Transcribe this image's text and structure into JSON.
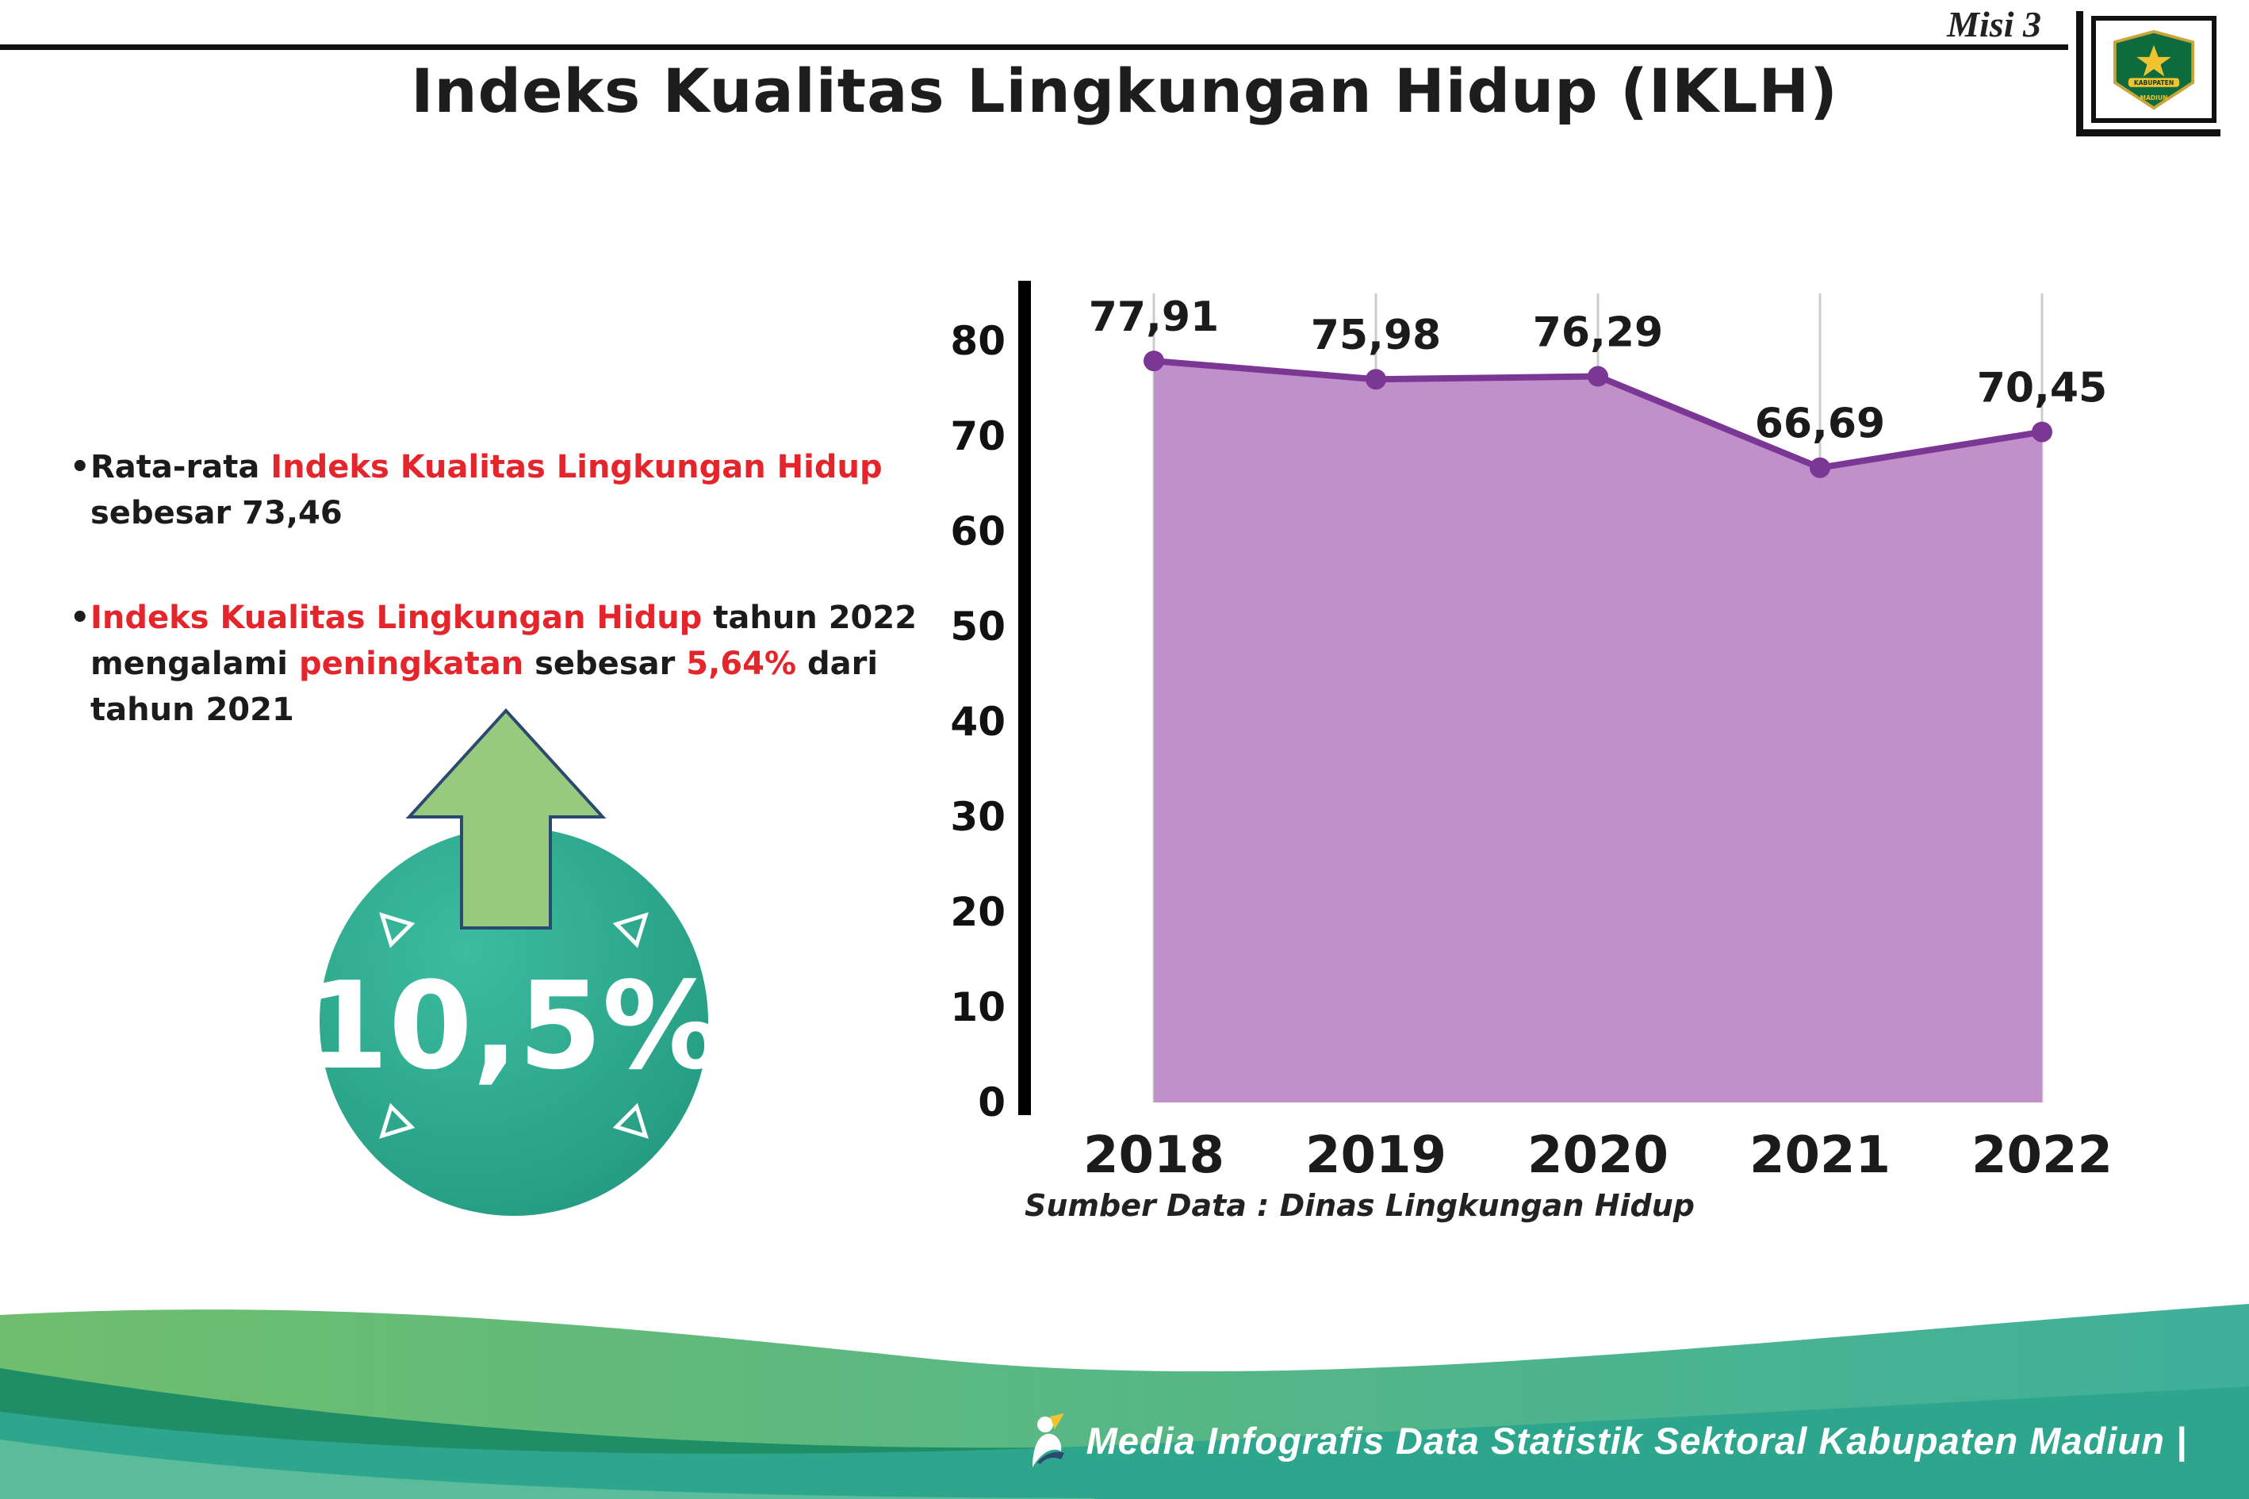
{
  "header": {
    "misi_label": "Misi 3",
    "title": "Indeks Kualitas Lingkungan Hidup (IKLH)",
    "logo": {
      "icon": "kabupaten-madiun-emblem",
      "top_text": "KABUPATEN",
      "bottom_text": "MADIUN"
    }
  },
  "bullets": {
    "marker": "•",
    "b1_pre": "Rata-rata ",
    "b1_red": "Indeks Kualitas Lingkungan Hidup",
    "b1_post": "\nsebesar 73,46",
    "b2_red1": "Indeks Kualitas Lingkungan Hidup",
    "b2_mid1": " tahun 2022\nmengalami ",
    "b2_red2": "peningkatan",
    "b2_mid2": " sebesar ",
    "b2_red3": "5,64%",
    "b2_post": " dari\ntahun 2021"
  },
  "badge": {
    "value": "10,5%",
    "icon": "up-arrow"
  },
  "chart_data": {
    "type": "area",
    "title": "",
    "categories": [
      "2018",
      "2019",
      "2020",
      "2021",
      "2022"
    ],
    "values": [
      77.91,
      75.98,
      76.29,
      66.69,
      70.45
    ],
    "point_labels": [
      "77,91",
      "75,98",
      "76,29",
      "66,69",
      "70,45"
    ],
    "ylim": [
      0,
      80
    ],
    "yticks": [
      0,
      10,
      20,
      30,
      40,
      50,
      60,
      70,
      80
    ],
    "grid": "vertical-light",
    "legend": "none",
    "xlabel": "",
    "ylabel": "",
    "line_color": "#7B3794",
    "fill_color": "#C18FCA",
    "axis_color": "#000000",
    "source": "Sumber Data : Dinas Lingkungan Hidup"
  },
  "footer": {
    "text": "Media Infografis Data Statistik Sektoral Kabupaten Madiun |",
    "icon": "mascot-logo"
  },
  "colors": {
    "accent_red": "#E4252C",
    "badge_teal": "#2EAE93",
    "badge_teal_dark": "#1E9B7F",
    "arrow_green": "#96CB7F",
    "footer_grad_left": "#6FBE6E",
    "footer_grad_right": "#3FB09B",
    "footer_dark_green": "#1F8E66",
    "footer_teal": "#2EA68D",
    "footer_light_green": "#5ABC9B"
  }
}
